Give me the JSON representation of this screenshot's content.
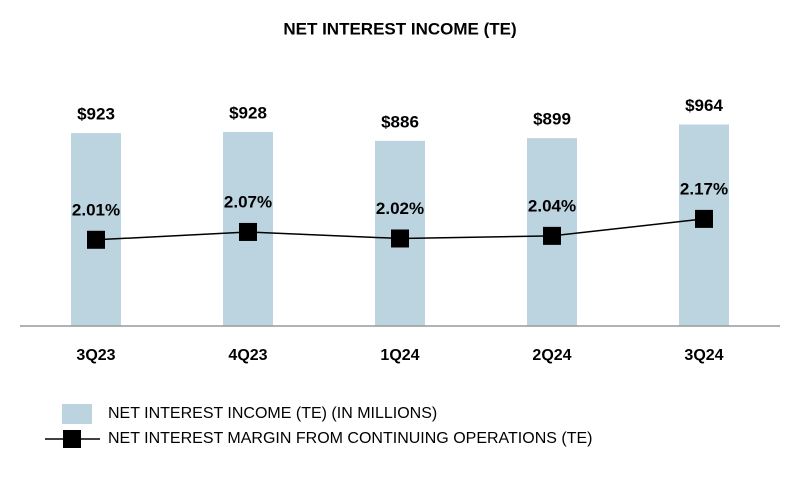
{
  "chart_data": {
    "type": "bar-line",
    "title": "NET INTEREST INCOME (TE)",
    "categories": [
      "3Q23",
      "4Q23",
      "1Q24",
      "2Q24",
      "3Q24"
    ],
    "ylim": [
      0,
      1000
    ],
    "y2lim": [
      1.35,
      2.95
    ],
    "series": [
      {
        "name": "NET INTEREST INCOME (TE) (IN MILLIONS)",
        "type": "bar",
        "color": "#bcd4e0",
        "values": [
          923,
          928,
          886,
          899,
          964
        ],
        "value_labels": [
          "$923",
          "$928",
          "$886",
          "$899",
          "$964"
        ]
      },
      {
        "name": "NET INTEREST MARGIN FROM CONTINUING OPERATIONS (TE)",
        "type": "line",
        "axis": "y2",
        "color": "#000000",
        "values": [
          2.01,
          2.07,
          2.02,
          2.04,
          2.17
        ],
        "value_labels": [
          "2.01%",
          "2.07%",
          "2.02%",
          "2.04%",
          "2.17%"
        ]
      }
    ]
  }
}
